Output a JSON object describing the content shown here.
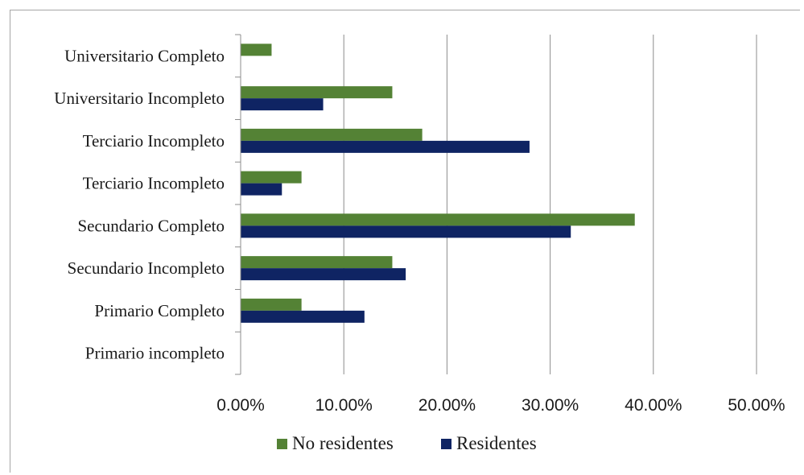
{
  "chart_data": {
    "type": "bar",
    "orientation": "horizontal",
    "categories": [
      "Universitario Completo",
      "Universitario Incompleto",
      "Terciario Incompleto",
      "Terciario Incompleto",
      "Secundario Completo",
      "Secundario Incompleto",
      "Primario Completo",
      "Primario incompleto"
    ],
    "series": [
      {
        "name": "No residentes",
        "color": "#548235",
        "values": [
          3.0,
          14.7,
          17.6,
          5.9,
          38.2,
          14.7,
          5.9,
          0
        ]
      },
      {
        "name": "Residentes",
        "color": "#0f2463",
        "values": [
          0,
          8.0,
          28.0,
          4.0,
          32.0,
          16.0,
          12.0,
          0
        ]
      }
    ],
    "x_ticks": [
      "0.00%",
      "10.00%",
      "20.00%",
      "30.00%",
      "40.00%",
      "50.00%"
    ],
    "xlim": [
      0,
      50
    ],
    "grid": true,
    "legend_position": "bottom"
  }
}
